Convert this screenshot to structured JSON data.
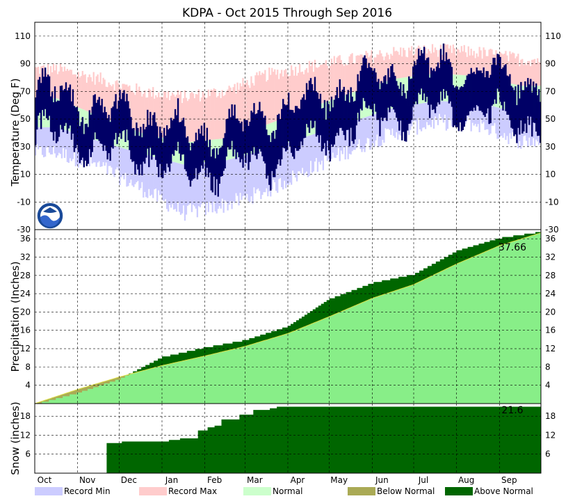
{
  "chart_data": [
    {
      "type": "area",
      "panel": "temperature",
      "title": "KDPA - Oct 2015 Through Sep 2016",
      "ylabel": "Temperature (Deg F)",
      "ylim": [
        -30,
        120
      ],
      "yticks": [
        -30,
        -10,
        10,
        30,
        50,
        70,
        90,
        110
      ],
      "grid": true,
      "months": [
        "Oct",
        "Nov",
        "Dec",
        "Jan",
        "Feb",
        "Mar",
        "Apr",
        "May",
        "Jun",
        "Jul",
        "Aug",
        "Sep"
      ],
      "month_days": [
        31,
        30,
        31,
        31,
        29,
        31,
        30,
        31,
        30,
        31,
        31,
        30
      ],
      "normal_high_anchor": [
        65,
        52,
        40,
        33,
        36,
        46,
        58,
        69,
        79,
        83,
        81,
        74
      ],
      "normal_low_anchor": [
        44,
        34,
        25,
        17,
        20,
        28,
        38,
        48,
        58,
        63,
        62,
        54
      ],
      "record_max_anchor": [
        86,
        79,
        70,
        66,
        70,
        82,
        88,
        93,
        98,
        100,
        98,
        93
      ],
      "record_min_anchor": [
        26,
        16,
        0,
        -18,
        -12,
        -2,
        14,
        28,
        40,
        48,
        46,
        34
      ],
      "observed_high_anchor": [
        66,
        54,
        50,
        36,
        38,
        50,
        60,
        72,
        80,
        84,
        82,
        74
      ],
      "observed_low_anchor": [
        45,
        36,
        32,
        18,
        22,
        28,
        38,
        52,
        60,
        64,
        62,
        54
      ]
    },
    {
      "type": "area",
      "panel": "precipitation",
      "ylabel": "Precipitation (Inches)",
      "ylim": [
        0,
        38
      ],
      "yticks": [
        4,
        8,
        12,
        16,
        20,
        24,
        28,
        32,
        36
      ],
      "grid": true,
      "total_label": "37.66",
      "normal_cumulative_monthly": [
        0,
        3.1,
        5.8,
        8.3,
        10.4,
        12.5,
        15.3,
        19.0,
        23.0,
        26.0,
        30.5,
        34.5,
        37.3
      ],
      "observed_cumulative_monthly": [
        0,
        2.5,
        5.5,
        10.3,
        12.4,
        14.0,
        17.0,
        23.0,
        26.5,
        28.4,
        33.5,
        36.3,
        37.66
      ]
    },
    {
      "type": "area",
      "panel": "snow",
      "ylabel": "Snow (inches)",
      "ylim": [
        0,
        22
      ],
      "yticks": [
        6,
        12,
        18
      ],
      "grid": true,
      "total_label": "21.6",
      "normal_seasonal_total": 0.5,
      "observed_steps": [
        [
          0,
          0
        ],
        [
          40,
          0
        ],
        [
          52,
          9.5
        ],
        [
          63,
          10
        ],
        [
          70,
          10
        ],
        [
          97,
          10.5
        ],
        [
          105,
          11
        ],
        [
          118,
          13.5
        ],
        [
          125,
          14.5
        ],
        [
          130,
          15
        ],
        [
          135,
          17
        ],
        [
          148,
          18.5
        ],
        [
          158,
          20
        ],
        [
          170,
          20.5
        ],
        [
          175,
          21
        ],
        [
          366,
          21.6
        ]
      ]
    }
  ],
  "legend": {
    "items": [
      {
        "label": "Record Min",
        "color": "#ccccff"
      },
      {
        "label": "Record Max",
        "color": "#ffcccc"
      },
      {
        "label": "Normal",
        "color": "#ccffcc"
      },
      {
        "label": "Below Normal",
        "color": "#aaaa55"
      },
      {
        "label": "Above Normal",
        "color": "#006600"
      }
    ]
  },
  "colors": {
    "observed": "#000066",
    "record_min": "#ccccff",
    "record_max": "#ffcccc",
    "normal": "#ccffcc",
    "precip_normal": "#88ee88",
    "above_normal": "#006600",
    "below_normal": "#aaaa55"
  },
  "logo": {
    "icon": "noaa-logo-icon"
  }
}
